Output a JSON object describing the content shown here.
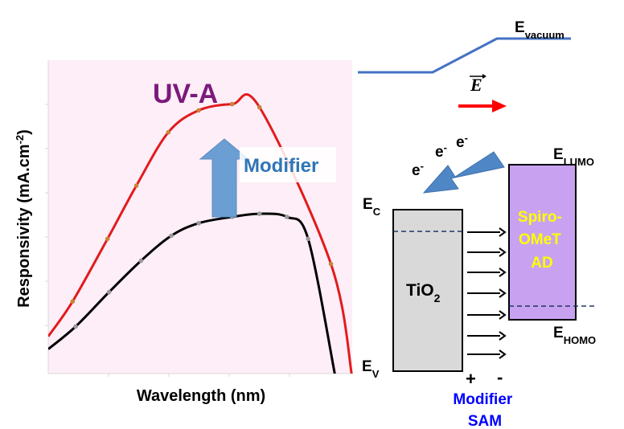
{
  "chart_data": {
    "type": "line",
    "title": "UV-A",
    "xlabel": "Wavelength (nm)",
    "ylabel": "Responsivity (mA.cm",
    "ylabel_superscript": "-2",
    "ylabel_suffix": ")",
    "annotation": "Modifier",
    "xlim": [
      0,
      1
    ],
    "ylim": [
      0,
      1
    ],
    "series": [
      {
        "color": "#e31a1c",
        "marker_color": "#c8843a",
        "x": [
          0.08,
          0.195,
          0.29,
          0.395,
          0.495,
          0.605,
          0.695,
          0.93
        ],
        "y": [
          0.23,
          0.43,
          0.6,
          0.77,
          0.84,
          0.86,
          0.85,
          0.35
        ]
      },
      {
        "color": "#000000",
        "marker_color": "#9a9a9a",
        "x": [
          0.09,
          0.2,
          0.305,
          0.405,
          0.495,
          0.605,
          0.695,
          0.785,
          0.855
        ],
        "y": [
          0.15,
          0.26,
          0.36,
          0.44,
          0.48,
          0.5,
          0.51,
          0.5,
          0.43
        ]
      }
    ]
  },
  "diagram": {
    "colors": {
      "plot_bg": "#fdeef7",
      "uva_text": "#7b1a7b",
      "arrow_fill": "#6b9fd3",
      "modifier_text": "#2e75b6",
      "vacuum_line": "#4472c4",
      "field_arrow": "#ff0000",
      "tio2_fill": "#d9d9d9",
      "spiro_fill": "#c8a2f0",
      "spiro_text": "#ffff00",
      "sam_text": "#0000ff"
    },
    "e_vacuum": {
      "main": "E",
      "sub": "vacuum"
    },
    "field_vector": "E",
    "electrons": [
      {
        "main": "e",
        "sup": "-"
      },
      {
        "main": "e",
        "sup": "-"
      },
      {
        "main": "e",
        "sup": "-"
      }
    ],
    "e_lumo": {
      "main": "E",
      "sub": "LUMO"
    },
    "e_homo": {
      "main": "E",
      "sub": "HOMO"
    },
    "e_c": {
      "main": "E",
      "sub": "C"
    },
    "e_v": {
      "main": "E",
      "sub": "V"
    },
    "tio2": {
      "main": "TiO",
      "sub": "2"
    },
    "spiro_lines": [
      "Spiro-",
      "OMeT",
      "AD"
    ],
    "plus": "+",
    "minus": "-",
    "sam_lines": [
      "Modifier",
      "SAM"
    ]
  }
}
